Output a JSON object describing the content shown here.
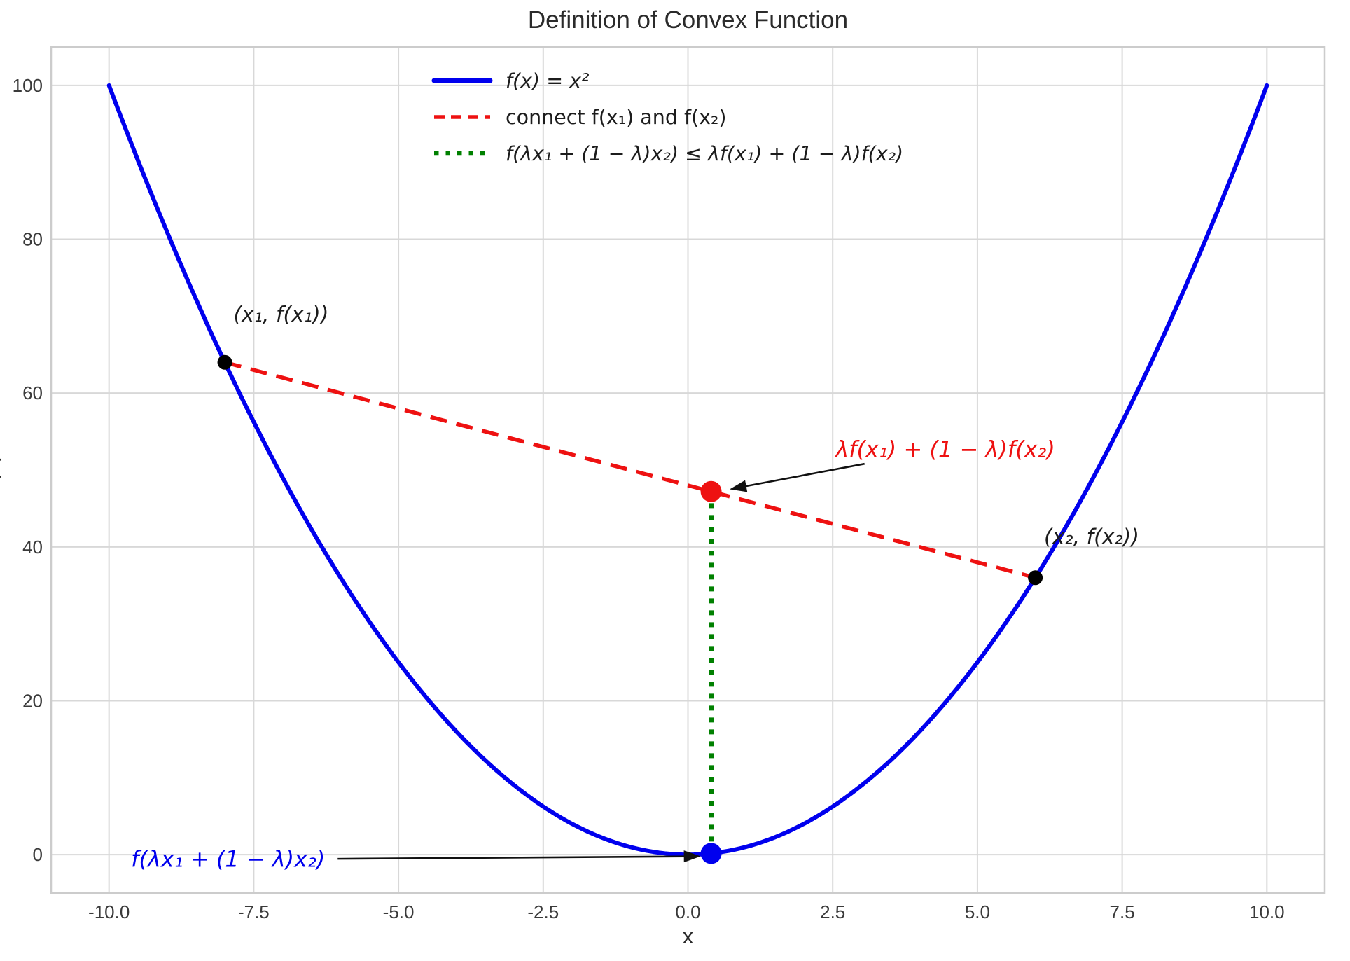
{
  "chart_data": {
    "type": "line",
    "title": "Definition of Convex Function",
    "xlabel": "x",
    "ylabel": "f(x)",
    "xlim": [
      -11,
      11
    ],
    "ylim": [
      -5,
      105
    ],
    "grid": true,
    "grid_color": "#d8d8d8",
    "border_color": "#cccccc",
    "xticks": {
      "values": [
        -10,
        -7.5,
        -5,
        -2.5,
        0,
        2.5,
        5,
        7.5,
        10
      ],
      "labels": [
        "-10.0",
        "-7.5",
        "-5.0",
        "-2.5",
        "0.0",
        "2.5",
        "5.0",
        "7.5",
        "10.0"
      ]
    },
    "yticks": {
      "values": [
        0,
        20,
        40,
        60,
        80,
        100
      ],
      "labels": [
        "0",
        "20",
        "40",
        "60",
        "80",
        "100"
      ]
    },
    "legend": {
      "position": "upper center",
      "frame": false,
      "entries": [
        {
          "label": "f(x) = x²",
          "color": "#0000ee",
          "style": "solid",
          "italic": true
        },
        {
          "label": "connect f(x₁) and f(x₂)",
          "color": "#ee1111",
          "style": "dashed",
          "italic": false
        },
        {
          "label": "f(λx₁ + (1 − λ)x₂) ≤ λf(x₁) + (1 − λ)f(x₂)",
          "color": "#008000",
          "style": "dotted",
          "italic": true
        }
      ]
    },
    "series": [
      {
        "name": "parabola",
        "kind": "function",
        "expression": "x^2",
        "x_range": [
          -10,
          10
        ],
        "color": "#0000ee",
        "style": "solid",
        "width": 6
      },
      {
        "name": "chord",
        "kind": "segment",
        "from": [
          -8,
          64
        ],
        "to": [
          6,
          36
        ],
        "color": "#ee1111",
        "style": "dashed",
        "width": 5.5
      },
      {
        "name": "convexity-gap",
        "kind": "segment",
        "from": [
          0.4,
          0.16
        ],
        "to": [
          0.4,
          47.2
        ],
        "color": "#008000",
        "style": "dotted",
        "width": 7
      }
    ],
    "points": [
      {
        "name": "point-x1",
        "x": -8,
        "y": 64,
        "color": "#000000",
        "r": 10.5
      },
      {
        "name": "point-x2",
        "x": 6,
        "y": 36,
        "color": "#000000",
        "r": 10.5
      },
      {
        "name": "point-chord-value",
        "x": 0.4,
        "y": 47.2,
        "color": "#ee1111",
        "r": 15
      },
      {
        "name": "point-curve-value",
        "x": 0.4,
        "y": 0.16,
        "color": "#0000ee",
        "r": 15
      }
    ],
    "annotations": [
      {
        "name": "label-x1",
        "text": "(x₁, f(x₁))",
        "color": "#1c1c1c",
        "x": -7.85,
        "y": 69.3,
        "anchor": "start",
        "size": 30,
        "italic": true
      },
      {
        "name": "label-x2",
        "text": "(x₂, f(x₂))",
        "color": "#1c1c1c",
        "x": 6.15,
        "y": 40.4,
        "anchor": "start",
        "size": 30,
        "italic": true
      },
      {
        "name": "label-chord-value",
        "text": "λf(x₁) + (1 − λ)f(x₂)",
        "color": "#ee1111",
        "x": 2.55,
        "y": 51.7,
        "anchor": "start",
        "size": 32,
        "italic": true,
        "arrow": {
          "from": [
            3.05,
            50.8
          ],
          "to": [
            0.72,
            47.5
          ]
        }
      },
      {
        "name": "label-curve-value",
        "text": "f(λx₁ + (1 − λ)x₂)",
        "color": "#0000ee",
        "x": -9.62,
        "y": -1.6,
        "anchor": "start",
        "size": 32,
        "italic": true,
        "arrow": {
          "from": [
            -6.05,
            -0.55
          ],
          "to": [
            0.22,
            -0.22
          ]
        }
      }
    ],
    "params": {
      "x1": -8,
      "x2": 6,
      "lambda": 0.4,
      "f_x1": 64,
      "f_x2": 36,
      "chord_value": 47.2,
      "curve_value": 0.16
    }
  }
}
